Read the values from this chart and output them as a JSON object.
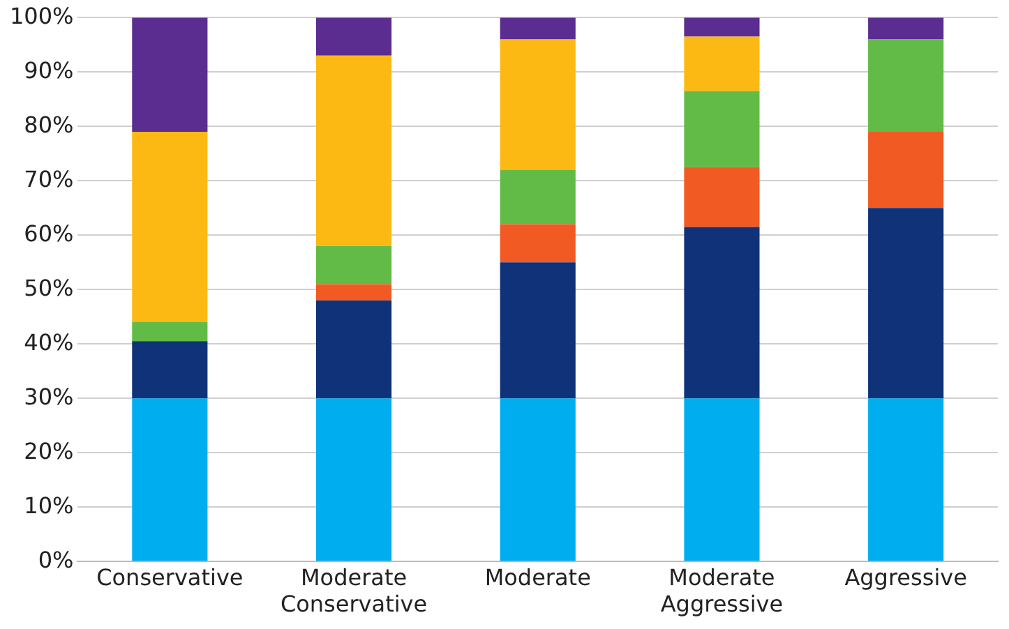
{
  "chart_data": {
    "type": "bar",
    "stacked": true,
    "categories": [
      "Conservative",
      "Moderate Conservative",
      "Moderate",
      "Moderate Aggressive",
      "Aggressive"
    ],
    "series": [
      {
        "color": "#00aeef",
        "values": [
          30,
          30,
          30,
          30,
          30
        ]
      },
      {
        "color": "#0f3278",
        "values": [
          10.5,
          18,
          25,
          31.5,
          35
        ]
      },
      {
        "color": "#f15a22",
        "values": [
          0,
          3,
          7,
          11,
          14
        ]
      },
      {
        "color": "#62bb46",
        "values": [
          3.5,
          7,
          10,
          14,
          17
        ]
      },
      {
        "color": "#fdb913",
        "values": [
          35,
          35,
          24,
          10,
          0
        ]
      },
      {
        "color": "#5b2d90",
        "values": [
          21,
          7,
          4,
          3.5,
          4
        ]
      }
    ],
    "ylim": [
      0,
      100
    ],
    "yticks": [
      {
        "value": 0,
        "label": "0%"
      },
      {
        "value": 10,
        "label": "10%"
      },
      {
        "value": 20,
        "label": "20%"
      },
      {
        "value": 30,
        "label": "30%"
      },
      {
        "value": 40,
        "label": "40%"
      },
      {
        "value": 50,
        "label": "50%"
      },
      {
        "value": 60,
        "label": "60%"
      },
      {
        "value": 70,
        "label": "70%"
      },
      {
        "value": 80,
        "label": "80%"
      },
      {
        "value": 90,
        "label": "90%"
      },
      {
        "value": 100,
        "label": "100%"
      }
    ],
    "grid": "y",
    "legend": false
  }
}
